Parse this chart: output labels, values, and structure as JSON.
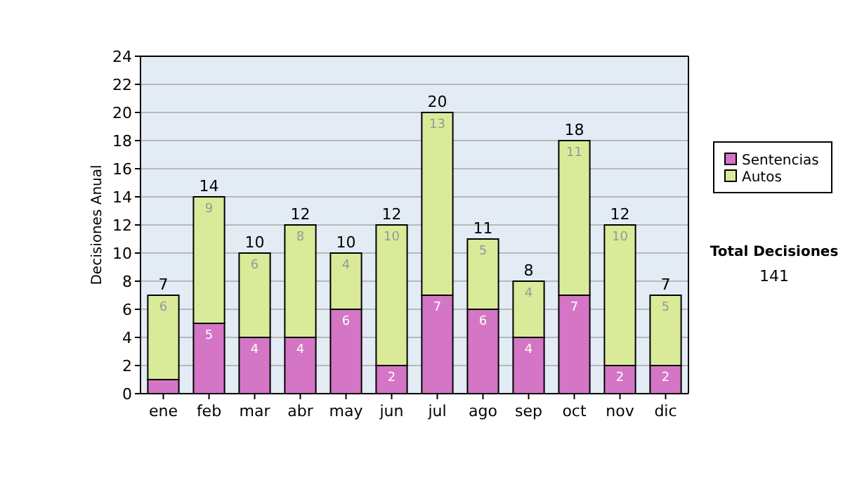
{
  "chart_data": {
    "type": "bar",
    "stacked": true,
    "ylabel": "Decisiones Anual",
    "categories": [
      "ene",
      "feb",
      "mar",
      "abr",
      "may",
      "jun",
      "jul",
      "ago",
      "sep",
      "oct",
      "nov",
      "dic"
    ],
    "series": [
      {
        "name": "Sentencias",
        "color": "#d575c5",
        "values": [
          1,
          5,
          4,
          4,
          6,
          2,
          7,
          6,
          4,
          7,
          2,
          2
        ],
        "value_labels": [
          null,
          "5",
          "4",
          "4",
          "6",
          "2",
          "7",
          "6",
          "4",
          "7",
          "2",
          "2"
        ]
      },
      {
        "name": "Autos",
        "color": "#d9eb98",
        "values": [
          6,
          9,
          6,
          8,
          4,
          10,
          13,
          5,
          4,
          11,
          10,
          5
        ],
        "value_labels": [
          "6",
          "9",
          "6",
          "8",
          "4",
          "10",
          "13",
          "5",
          "4",
          "11",
          "10",
          "5"
        ]
      }
    ],
    "totals": [
      "7",
      "14",
      "10",
      "12",
      "10",
      "12",
      "20",
      "11",
      "8",
      "18",
      "12",
      "7"
    ],
    "ylim": [
      0,
      24
    ],
    "yticks": [
      0,
      2,
      4,
      6,
      8,
      10,
      12,
      14,
      16,
      18,
      20,
      22,
      24
    ],
    "grid": "y",
    "legend": "right",
    "annotations": [
      "Total Decisiones",
      "141"
    ]
  }
}
